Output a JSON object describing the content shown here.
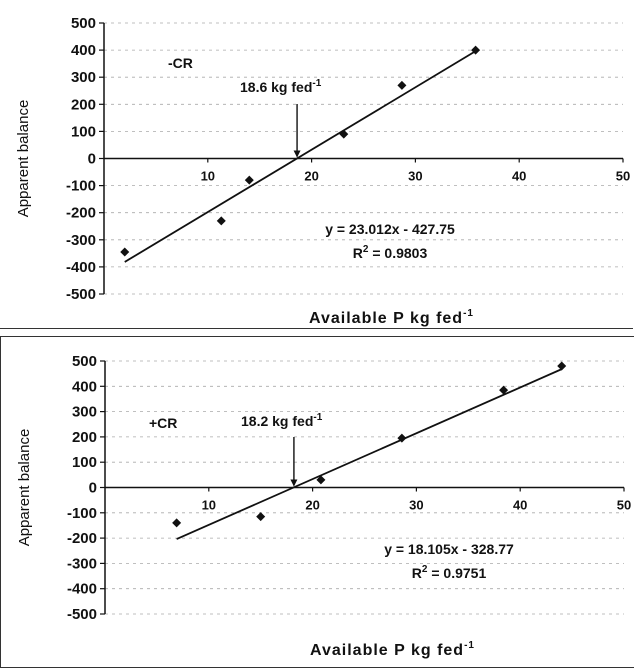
{
  "chart_data": [
    {
      "type": "scatter",
      "panel_label": "-CR",
      "ylabel": "Apparent balance",
      "xlabel": "Available P kg fed",
      "xlabel_sup": "-1",
      "xlim": [
        0,
        50
      ],
      "ylim": [
        -500,
        500
      ],
      "x_ticks": [
        10,
        20,
        30,
        40,
        50
      ],
      "y_ticks": [
        500,
        400,
        300,
        200,
        100,
        0,
        -100,
        -200,
        -300,
        -400,
        -500
      ],
      "points": [
        {
          "x": 2,
          "y": -345
        },
        {
          "x": 11.3,
          "y": -230
        },
        {
          "x": 14,
          "y": -80
        },
        {
          "x": 23.1,
          "y": 90
        },
        {
          "x": 28.7,
          "y": 270
        },
        {
          "x": 35.8,
          "y": 400
        }
      ],
      "trendline": {
        "slope": 23.012,
        "intercept": -427.75,
        "x_range": [
          2,
          35.8
        ]
      },
      "equation": "y = 23.012x - 427.75",
      "r2_label": "R",
      "r2_sup": "2",
      "r2_value": "= 0.9803",
      "annotation": "18.6 kg fed",
      "annotation_sup": "-1",
      "annotation_x": 18.6
    },
    {
      "type": "scatter",
      "panel_label": "+CR",
      "ylabel": "Apparent balance",
      "xlabel": "Available P kg fed",
      "xlabel_sup": "-1",
      "xlim": [
        0,
        50
      ],
      "ylim": [
        -500,
        500
      ],
      "x_ticks": [
        10,
        20,
        30,
        40,
        50
      ],
      "y_ticks": [
        500,
        400,
        300,
        200,
        100,
        0,
        -100,
        -200,
        -300,
        -400,
        -500
      ],
      "points": [
        {
          "x": 6.9,
          "y": -140
        },
        {
          "x": 15,
          "y": -115
        },
        {
          "x": 20.8,
          "y": 30
        },
        {
          "x": 28.6,
          "y": 195
        },
        {
          "x": 38.4,
          "y": 385
        },
        {
          "x": 44,
          "y": 480
        }
      ],
      "trendline": {
        "slope": 18.105,
        "intercept": -328.77,
        "x_range": [
          6.9,
          44
        ]
      },
      "equation": "y = 18.105x - 328.77",
      "r2_label": "R",
      "r2_sup": "2",
      "r2_value": "= 0.9751",
      "annotation": "18.2 kg fed",
      "annotation_sup": "-1",
      "annotation_x": 18.2
    }
  ]
}
